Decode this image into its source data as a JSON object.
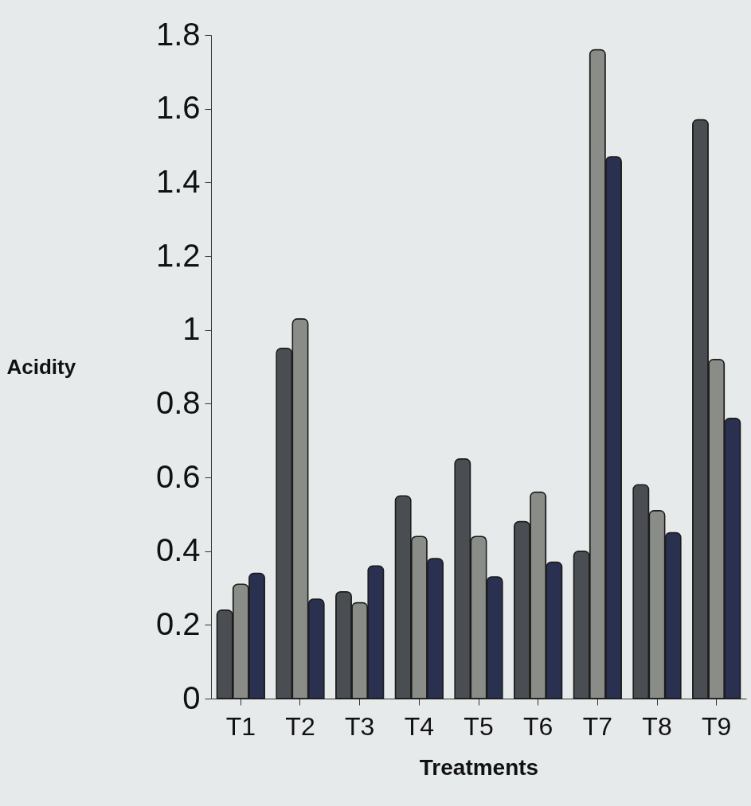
{
  "chart_data": {
    "type": "bar",
    "xlabel": "Treatments",
    "ylabel": "Acidity",
    "categories": [
      "T1",
      "T2",
      "T3",
      "T4",
      "T5",
      "T6",
      "T7",
      "T8",
      "T9"
    ],
    "series": [
      {
        "color": "#4a4e52",
        "values": [
          0.24,
          0.95,
          0.29,
          0.55,
          0.65,
          0.48,
          0.4,
          0.58,
          1.57
        ]
      },
      {
        "color": "#8a8c88",
        "values": [
          0.31,
          1.03,
          0.26,
          0.44,
          0.44,
          0.56,
          1.76,
          0.51,
          0.92
        ]
      },
      {
        "color": "#2a3050",
        "values": [
          0.34,
          0.27,
          0.36,
          0.38,
          0.33,
          0.37,
          1.47,
          0.45,
          0.76
        ]
      }
    ],
    "ylim": [
      0,
      1.8
    ],
    "yticks": [
      0,
      0.2,
      0.4,
      0.6,
      0.8,
      1,
      1.2,
      1.4,
      1.6,
      1.8
    ],
    "grid": false,
    "legend": false
  }
}
